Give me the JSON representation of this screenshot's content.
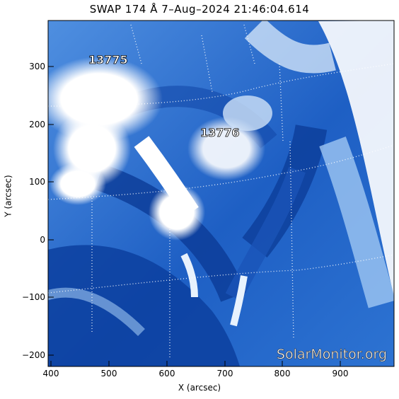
{
  "title": "SWAP 174 Å  7–Aug–2024 21:46:04.614",
  "axes": {
    "xlabel": "X (arcsec)",
    "ylabel": "Y (arcsec)",
    "xticks": [
      "400",
      "500",
      "600",
      "700",
      "800",
      "900"
    ],
    "yticks": [
      "300",
      "200",
      "100",
      "0",
      "−100",
      "−200"
    ],
    "xrange": [
      395,
      995
    ],
    "yrange": [
      -220,
      380
    ]
  },
  "regions": [
    {
      "label": "13775",
      "x": 500,
      "y": 315
    },
    {
      "label": "13776",
      "x": 695,
      "y": 185
    }
  ],
  "watermark": "SolarMonitor.org",
  "colors": {
    "dark_blue": "#0a3f9e",
    "mid_blue": "#2f76d6",
    "light_blue": "#9fc7f2",
    "white": "#ffffff"
  }
}
